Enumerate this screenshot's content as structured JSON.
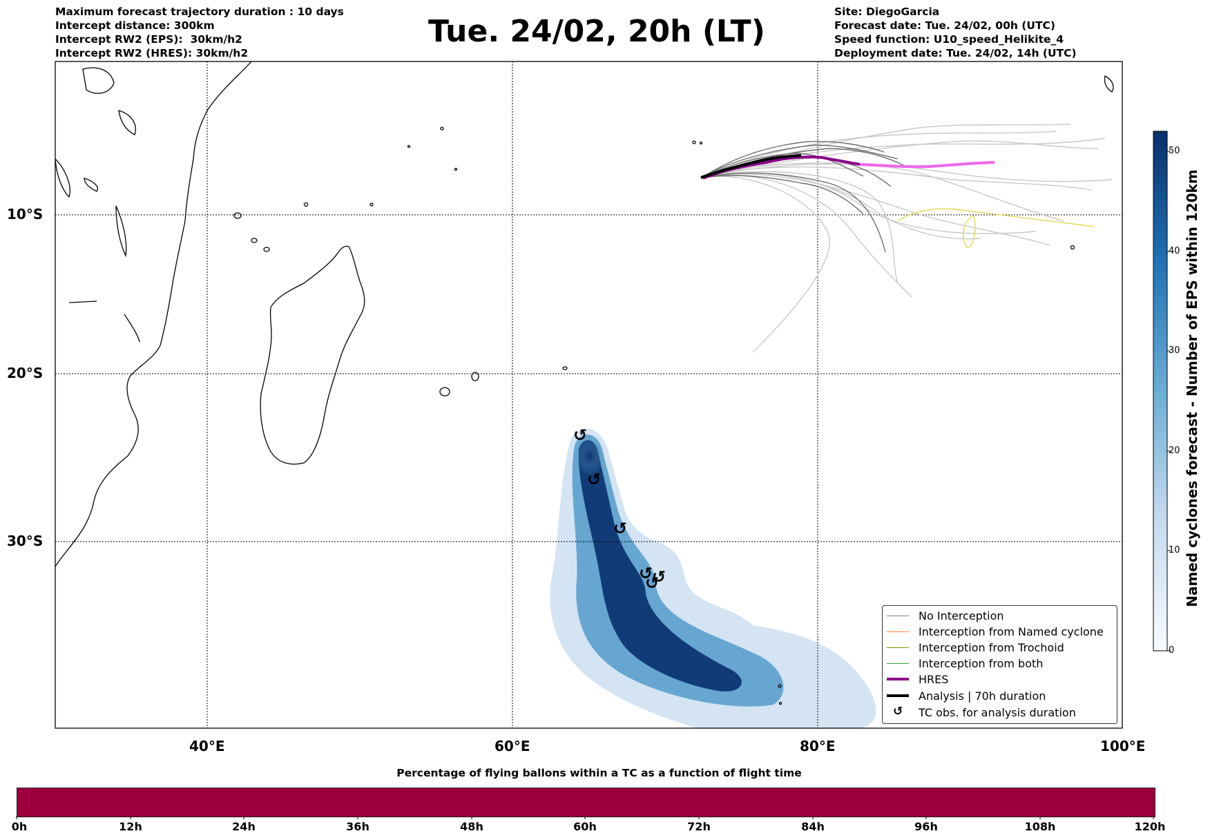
{
  "header": {
    "left_lines": [
      "Maximum forecast trajectory duration : 10 days",
      "Intercept distance: 300km",
      "Intercept RW2 (EPS):  30km/h2",
      "Intercept RW2 (HRES): 30km/h2"
    ],
    "title": "Tue. 24/02, 20h (LT)",
    "right_lines": [
      "Site: DiegoGarcia",
      "Forecast date: Tue. 24/02, 00h (UTC)",
      "Speed function: U10_speed_Helikite_4",
      "Deployment date: Tue. 24/02, 14h (UTC)"
    ]
  },
  "map": {
    "lon_labels": [
      "40°E",
      "60°E",
      "80°E",
      "100°E"
    ],
    "lat_labels": [
      "10°S",
      "20°S",
      "30°S"
    ],
    "colors": {
      "no_interception": "#808080",
      "named_cyclone": "#ff7f3f",
      "trochoid": "#8b8b00",
      "both": "#2ca02c",
      "hres": "#8b008b",
      "hres_extension": "#ee66ee",
      "analysis": "#000000",
      "density_dark": "#08306b",
      "density_light": "#deebf7"
    },
    "tc_observations_symbol": "↺"
  },
  "legend": {
    "items": [
      {
        "label": "No Interception",
        "color": "#808080",
        "kind": "thin-line"
      },
      {
        "label": "Interception from Named cyclone",
        "color": "#ff7f3f",
        "kind": "thin-line"
      },
      {
        "label": "Interception from Trochoid",
        "color": "#8b8b00",
        "kind": "thin-line"
      },
      {
        "label": "Interception from both",
        "color": "#2ca02c",
        "kind": "thin-line"
      },
      {
        "label": "HRES",
        "color": "#8b008b",
        "kind": "thick-line"
      },
      {
        "label": "Analysis | 70h duration",
        "color": "#000000",
        "kind": "thick-line"
      },
      {
        "label": "TC obs. for analysis duration",
        "color": "#000000",
        "kind": "symbol"
      }
    ]
  },
  "colorbar": {
    "title": "Named cyclones forecast - Number of EPS within 120km",
    "ticks": [
      "0",
      "10",
      "20",
      "30",
      "40",
      "50"
    ],
    "colormap": "Blues"
  },
  "bottom_bar": {
    "title": "Percentage of flying ballons within a TC as a function of flight time",
    "color": "#9b003c",
    "ticks": [
      "0h",
      "12h",
      "24h",
      "36h",
      "48h",
      "60h",
      "72h",
      "84h",
      "96h",
      "108h",
      "120h"
    ]
  }
}
